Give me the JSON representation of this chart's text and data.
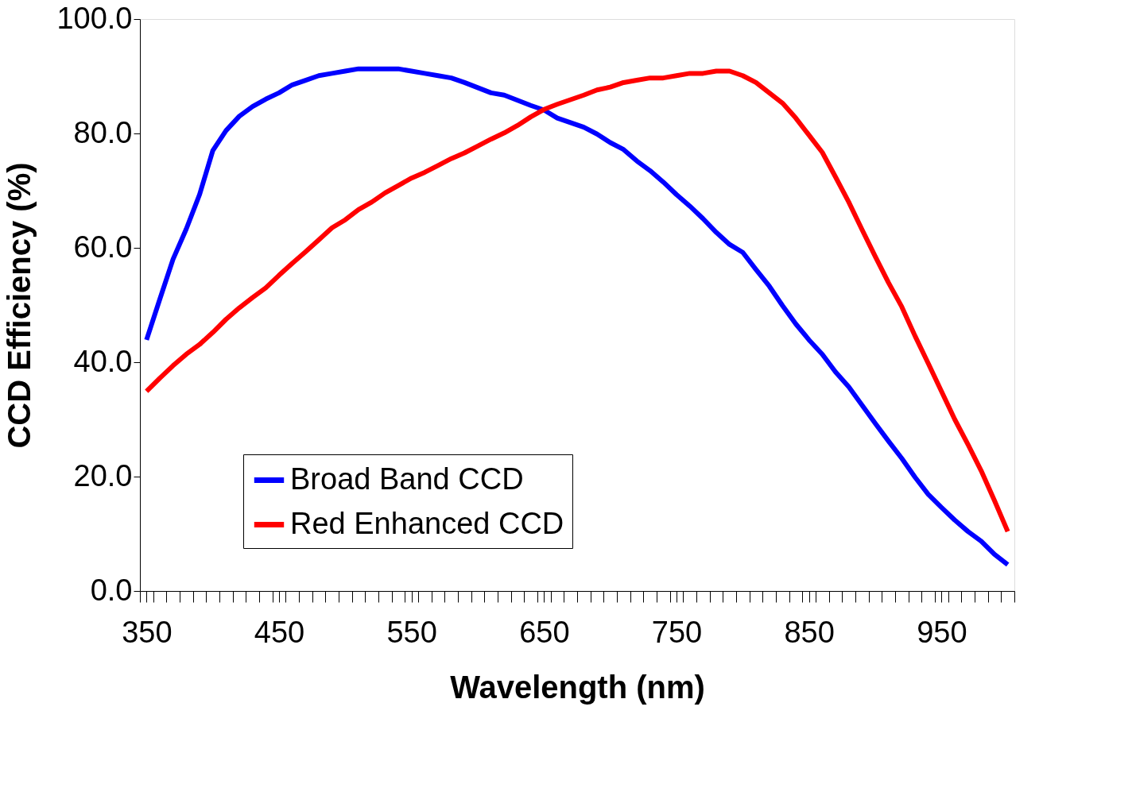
{
  "chart_data": {
    "type": "line",
    "xlabel": "Wavelength (nm)",
    "ylabel": "CCD Efficiency (%)",
    "x": [
      350,
      360,
      370,
      380,
      390,
      400,
      410,
      420,
      430,
      440,
      450,
      460,
      470,
      480,
      490,
      500,
      510,
      520,
      530,
      540,
      550,
      560,
      570,
      580,
      590,
      600,
      610,
      620,
      630,
      640,
      650,
      660,
      670,
      680,
      690,
      700,
      710,
      720,
      730,
      740,
      750,
      760,
      770,
      780,
      790,
      800,
      810,
      820,
      830,
      840,
      850,
      860,
      870,
      880,
      890,
      900,
      910,
      920,
      930,
      940,
      950,
      960,
      970,
      980,
      990,
      1000
    ],
    "series": [
      {
        "name": "Broad Band CCD",
        "color": "#0000ff",
        "values": [
          43.9,
          51,
          58,
          63.3,
          69.3,
          77,
          80.5,
          83,
          84.7,
          86,
          87.1,
          88.5,
          89.3,
          90.1,
          90.5,
          90.9,
          91.3,
          91.3,
          91.3,
          91.3,
          90.9,
          90.5,
          90.1,
          89.7,
          88.9,
          88,
          87.1,
          86.7,
          85.8,
          84.9,
          84.1,
          82.7,
          81.9,
          81.1,
          79.9,
          78.4,
          77.2,
          75.2,
          73.5,
          71.5,
          69.3,
          67.3,
          65.1,
          62.7,
          60.6,
          59.2,
          56.2,
          53.3,
          49.9,
          46.7,
          43.9,
          41.4,
          38.3,
          35.7,
          32.5,
          29.3,
          26.2,
          23.2,
          19.9,
          16.9,
          14.6,
          12.4,
          10.4,
          8.7,
          6.4,
          4.6
        ]
      },
      {
        "name": "Red Enhanced CCD",
        "color": "#ff0000",
        "values": [
          34.9,
          37.2,
          39.4,
          41.4,
          43.1,
          45.2,
          47.5,
          49.5,
          51.3,
          53,
          55.2,
          57.3,
          59.3,
          61.4,
          63.5,
          64.9,
          66.7,
          68,
          69.6,
          70.9,
          72.2,
          73.2,
          74.4,
          75.6,
          76.6,
          77.8,
          79,
          80.1,
          81.4,
          82.9,
          84.2,
          85.1,
          85.9,
          86.7,
          87.6,
          88.1,
          88.9,
          89.3,
          89.7,
          89.7,
          90.1,
          90.5,
          90.5,
          90.9,
          90.9,
          90.1,
          88.9,
          87.1,
          85.3,
          82.7,
          79.7,
          76.7,
          72.4,
          68,
          63.2,
          58.5,
          53.9,
          49.7,
          44.6,
          39.8,
          34.9,
          30,
          25.6,
          21,
          15.8,
          10.4
        ]
      }
    ],
    "xlim": [
      345,
      1005
    ],
    "xticks": [
      {
        "value": 345,
        "label": null
      },
      350,
      {
        "value": 355,
        "label": null
      },
      {
        "value": 365,
        "label": null
      },
      {
        "value": 375,
        "label": null
      },
      {
        "value": 385,
        "label": null
      },
      {
        "value": 395,
        "label": null
      },
      {
        "value": 405,
        "label": null
      },
      {
        "value": 415,
        "label": null
      },
      {
        "value": 425,
        "label": null
      },
      {
        "value": 435,
        "label": null
      },
      {
        "value": 445,
        "label": null
      },
      450,
      {
        "value": 455,
        "label": null
      },
      {
        "value": 465,
        "label": null
      },
      {
        "value": 475,
        "label": null
      },
      {
        "value": 485,
        "label": null
      },
      {
        "value": 495,
        "label": null
      },
      {
        "value": 505,
        "label": null
      },
      {
        "value": 515,
        "label": null
      },
      {
        "value": 525,
        "label": null
      },
      {
        "value": 535,
        "label": null
      },
      {
        "value": 545,
        "label": null
      },
      550,
      {
        "value": 555,
        "label": null
      },
      {
        "value": 565,
        "label": null
      },
      {
        "value": 575,
        "label": null
      },
      {
        "value": 585,
        "label": null
      },
      {
        "value": 595,
        "label": null
      },
      {
        "value": 605,
        "label": null
      },
      {
        "value": 615,
        "label": null
      },
      {
        "value": 625,
        "label": null
      },
      {
        "value": 635,
        "label": null
      },
      {
        "value": 645,
        "label": null
      },
      650,
      {
        "value": 655,
        "label": null
      },
      {
        "value": 665,
        "label": null
      },
      {
        "value": 675,
        "label": null
      },
      {
        "value": 685,
        "label": null
      },
      {
        "value": 695,
        "label": null
      },
      {
        "value": 705,
        "label": null
      },
      {
        "value": 715,
        "label": null
      },
      {
        "value": 725,
        "label": null
      },
      {
        "value": 735,
        "label": null
      },
      {
        "value": 745,
        "label": null
      },
      750,
      {
        "value": 755,
        "label": null
      },
      {
        "value": 765,
        "label": null
      },
      {
        "value": 775,
        "label": null
      },
      {
        "value": 785,
        "label": null
      },
      {
        "value": 795,
        "label": null
      },
      {
        "value": 805,
        "label": null
      },
      {
        "value": 815,
        "label": null
      },
      {
        "value": 825,
        "label": null
      },
      {
        "value": 835,
        "label": null
      },
      {
        "value": 845,
        "label": null
      },
      850,
      {
        "value": 855,
        "label": null
      },
      {
        "value": 865,
        "label": null
      },
      {
        "value": 875,
        "label": null
      },
      {
        "value": 885,
        "label": null
      },
      {
        "value": 895,
        "label": null
      },
      {
        "value": 905,
        "label": null
      },
      {
        "value": 915,
        "label": null
      },
      {
        "value": 925,
        "label": null
      },
      {
        "value": 935,
        "label": null
      },
      {
        "value": 945,
        "label": null
      },
      950,
      {
        "value": 955,
        "label": null
      },
      {
        "value": 965,
        "label": null
      },
      {
        "value": 975,
        "label": null
      },
      {
        "value": 985,
        "label": null
      },
      {
        "value": 995,
        "label": null
      },
      {
        "value": 1005,
        "label": null
      }
    ],
    "ylim": [
      0,
      100
    ],
    "yticks": [
      {
        "value": 0,
        "label": "0.0"
      },
      {
        "value": 20,
        "label": "20.0"
      },
      {
        "value": 40,
        "label": "40.0"
      },
      {
        "value": 60,
        "label": "60.0"
      },
      {
        "value": 80,
        "label": "80.0"
      },
      {
        "value": 100,
        "label": "100.0"
      }
    ],
    "grid": false,
    "legend": "bottom left",
    "line_style": "solid",
    "marker": "none"
  }
}
